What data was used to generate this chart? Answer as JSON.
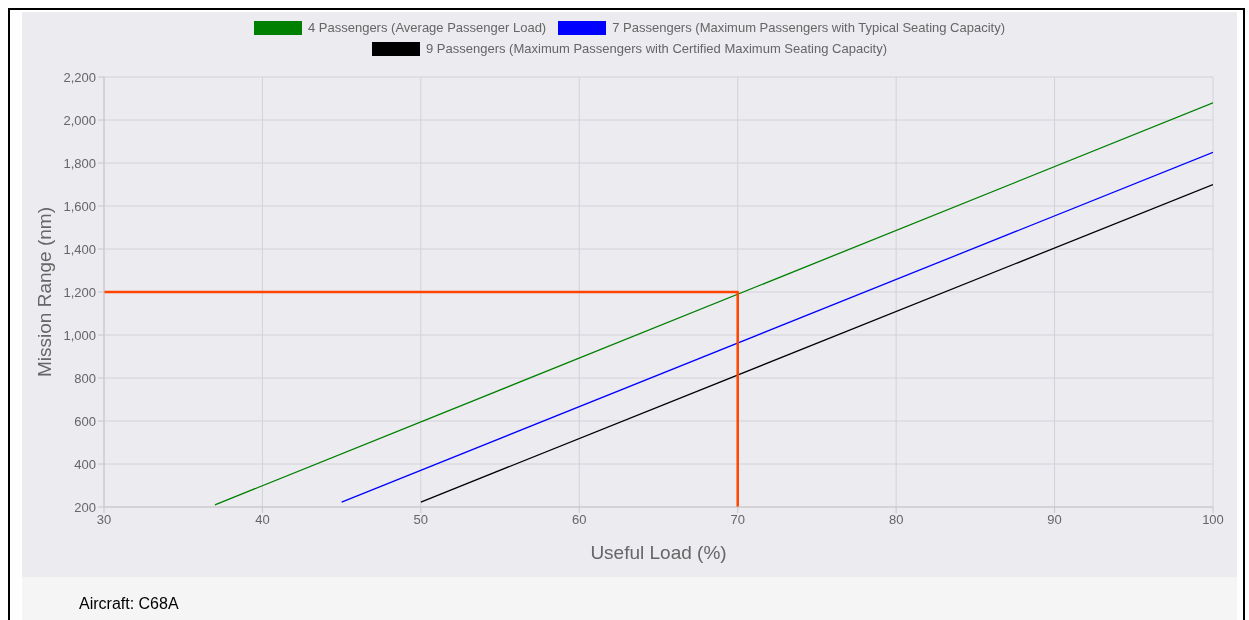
{
  "chart_data": {
    "type": "line",
    "xlabel": "Useful Load (%)",
    "ylabel": "Mission Range (nm)",
    "xlim": [
      30,
      100
    ],
    "xticks": [
      30,
      40,
      50,
      60,
      70,
      80,
      90,
      100
    ],
    "ylim": [
      200,
      2200
    ],
    "yticks": [
      {
        "value": 200,
        "label": "200"
      },
      {
        "value": 400,
        "label": "400"
      },
      {
        "value": 600,
        "label": "600"
      },
      {
        "value": 800,
        "label": "800"
      },
      {
        "value": 1000,
        "label": "1,000"
      },
      {
        "value": 1200,
        "label": "1,200"
      },
      {
        "value": 1400,
        "label": "1,400"
      },
      {
        "value": 1600,
        "label": "1,600"
      },
      {
        "value": 1800,
        "label": "1,800"
      },
      {
        "value": 2000,
        "label": "2,000"
      },
      {
        "value": 2200,
        "label": "2,200"
      }
    ],
    "grid": true,
    "legend": "top",
    "marker": "none",
    "line_style": "solid",
    "series": [
      {
        "name": "4 Passengers (Average Passenger Load)",
        "color": "#008000",
        "x": [
          37,
          100
        ],
        "values": [
          210,
          2080
        ]
      },
      {
        "name": "7 Passengers (Maximum Passengers with Typical Seating Capacity)",
        "color": "#0000ff",
        "x": [
          45,
          100
        ],
        "values": [
          223,
          1850
        ]
      },
      {
        "name": "9 Passengers (Maximum Passengers with Certified Maximum Seating Capacity)",
        "color": "#000000",
        "x": [
          50,
          100
        ],
        "values": [
          223,
          1700
        ]
      },
      {
        "color": "#ff4500",
        "x": [
          30,
          70,
          70
        ],
        "values": [
          1200,
          1200,
          200
        ]
      }
    ],
    "annotations": [
      "Aircraft: C68A"
    ]
  }
}
